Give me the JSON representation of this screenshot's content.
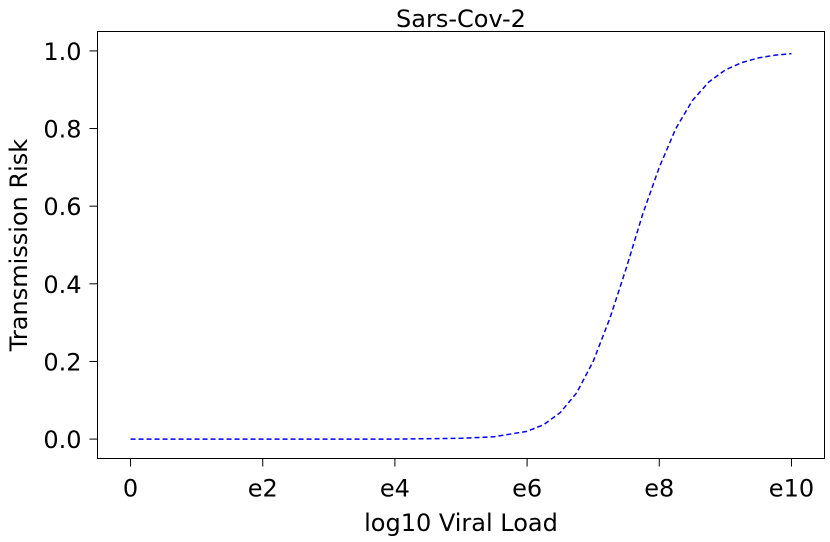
{
  "chart_data": {
    "type": "line",
    "title": "Sars-Cov-2",
    "xlabel": "log10 Viral Load",
    "ylabel": "Transmission Risk",
    "xlim": [
      -0.5,
      10.5
    ],
    "ylim": [
      -0.05,
      1.05
    ],
    "x_ticks": [
      {
        "value": 0,
        "label": "0"
      },
      {
        "value": 2,
        "label": "e2"
      },
      {
        "value": 4,
        "label": "e4"
      },
      {
        "value": 6,
        "label": "e6"
      },
      {
        "value": 8,
        "label": "e8"
      },
      {
        "value": 10,
        "label": "e10"
      }
    ],
    "y_ticks": [
      {
        "value": 0.0,
        "label": "0.0"
      },
      {
        "value": 0.2,
        "label": "0.2"
      },
      {
        "value": 0.4,
        "label": "0.4"
      },
      {
        "value": 0.6,
        "label": "0.6"
      },
      {
        "value": 0.8,
        "label": "0.8"
      },
      {
        "value": 1.0,
        "label": "1.0"
      }
    ],
    "grid": false,
    "series": [
      {
        "color": "#0000ff",
        "line_style": "dashed",
        "x": [
          0,
          1,
          2,
          3,
          4,
          5,
          5.5,
          6,
          6.25,
          6.5,
          6.75,
          7,
          7.25,
          7.5,
          7.75,
          8,
          8.25,
          8.5,
          8.75,
          9,
          9.25,
          9.5,
          9.75,
          10
        ],
        "y": [
          0.0,
          0.0,
          0.0,
          0.0,
          0.0,
          0.002,
          0.006,
          0.02,
          0.037,
          0.068,
          0.119,
          0.2,
          0.31,
          0.44,
          0.58,
          0.7,
          0.8,
          0.872,
          0.92,
          0.951,
          0.97,
          0.982,
          0.989,
          0.993
        ]
      }
    ]
  }
}
